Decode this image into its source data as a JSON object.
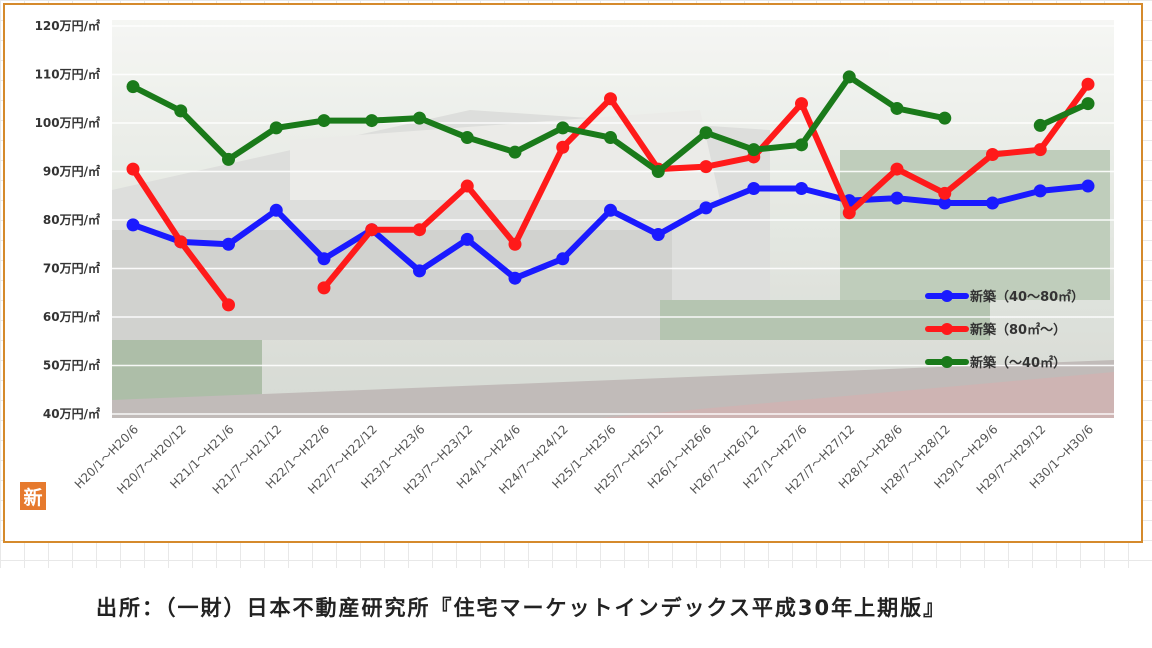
{
  "badge_text": "新",
  "source_text": "出所：（一財）日本不動産研究所『住宅マーケットインデックス平成30年上期版』",
  "chart_data": {
    "type": "line",
    "title": "",
    "xlabel": "",
    "ylabel": "",
    "ylim": [
      40,
      120
    ],
    "ytick_values": [
      40,
      50,
      60,
      70,
      80,
      90,
      100,
      110,
      120
    ],
    "ytick_labels": [
      "40万円/㎡",
      "50万円/㎡",
      "60万円/㎡",
      "70万円/㎡",
      "80万円/㎡",
      "90万円/㎡",
      "100万円/㎡",
      "110万円/㎡",
      "120万円/㎡"
    ],
    "grid": true,
    "legend_position": "right",
    "categories": [
      "H20/1～H20/6",
      "H20/7～H20/12",
      "H21/1～H21/6",
      "H21/7～H21/12",
      "H22/1～H22/6",
      "H22/7～H22/12",
      "H23/1～H23/6",
      "H23/7～H23/12",
      "H24/1～H24/6",
      "H24/7～H24/12",
      "H25/1～H25/6",
      "H25/7～H25/12",
      "H26/1～H26/6",
      "H26/7～H26/12",
      "H27/1～H27/6",
      "H27/7～H27/12",
      "H28/1～H28/6",
      "H28/7～H28/12",
      "H29/1～H29/6",
      "H29/7～H29/12",
      "H30/1～H30/6"
    ],
    "series": [
      {
        "name": "新築（40～80㎡）",
        "color": "#1a1aff",
        "values": [
          79,
          75.5,
          75,
          82,
          72,
          78,
          69.5,
          76,
          68,
          72,
          82,
          77,
          82.5,
          86.5,
          86.5,
          84,
          84.5,
          83.5,
          83.5,
          86,
          87
        ]
      },
      {
        "name": "新築（80㎡～）",
        "color": "#ff1a1a",
        "values": [
          90.5,
          75.5,
          62.5,
          null,
          66,
          78,
          78,
          87,
          75,
          95,
          105,
          90.5,
          91,
          93,
          104,
          81.5,
          90.5,
          85.5,
          93.5,
          94.5,
          108
        ]
      },
      {
        "name": "新築（～40㎡）",
        "color": "#1a7a1a",
        "values": [
          107.5,
          102.5,
          92.5,
          99,
          100.5,
          100.5,
          101,
          97,
          94,
          99,
          97,
          90,
          98,
          94.5,
          95.5,
          109.5,
          103,
          101,
          null,
          99.5,
          104
        ]
      }
    ]
  }
}
